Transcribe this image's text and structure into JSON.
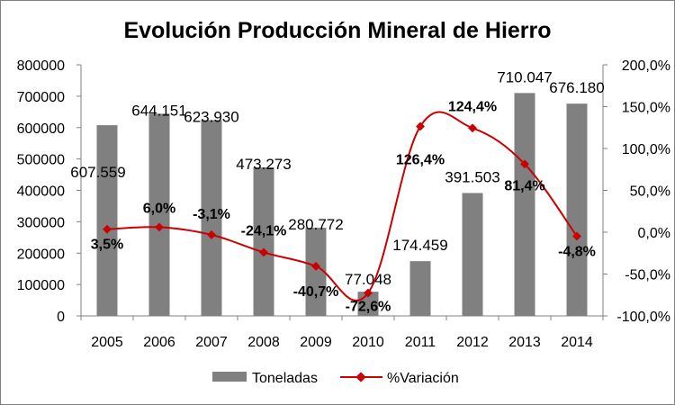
{
  "chart_data": {
    "type": "bar+line",
    "title": "Evolución Producción Mineral de Hierro",
    "categories": [
      "2005",
      "2006",
      "2007",
      "2008",
      "2009",
      "2010",
      "2011",
      "2012",
      "2013",
      "2014"
    ],
    "series": [
      {
        "name": "Toneladas",
        "type": "bar",
        "axis": "left",
        "color": "#808080",
        "values": [
          607559,
          644151,
          623930,
          473273,
          280772,
          77048,
          174459,
          391503,
          710047,
          676180
        ],
        "labels": [
          "607.559",
          "644.151",
          "623.930",
          "473.273",
          "280.772",
          "77.048",
          "174.459",
          "391.503",
          "710.047",
          "676.180"
        ]
      },
      {
        "name": "%Variación",
        "type": "line",
        "axis": "right",
        "color": "#CC0000",
        "values": [
          3.5,
          6.0,
          -3.1,
          -24.1,
          -40.7,
          -72.6,
          126.4,
          124.4,
          81.4,
          -4.8
        ],
        "labels": [
          "3,5%",
          "6,0%",
          "-3,1%",
          "-24,1%",
          "-40,7%",
          "-72,6%",
          "126,4%",
          "124,4%",
          "81,4%",
          "-4,8%"
        ]
      }
    ],
    "y_left": {
      "min": 0,
      "max": 800000,
      "ticks": [
        0,
        100000,
        200000,
        300000,
        400000,
        500000,
        600000,
        700000,
        800000
      ],
      "tick_labels": [
        "0",
        "100000",
        "200000",
        "300000",
        "400000",
        "500000",
        "600000",
        "700000",
        "800000"
      ]
    },
    "y_right": {
      "min": -100,
      "max": 200,
      "ticks": [
        -100,
        -50,
        0,
        50,
        100,
        150,
        200
      ],
      "tick_labels": [
        "-100,0%",
        "-50,0%",
        "0,0%",
        "50,0%",
        "100,0%",
        "150,0%",
        "200,0%"
      ]
    },
    "grid": false,
    "legend": "bottom"
  }
}
